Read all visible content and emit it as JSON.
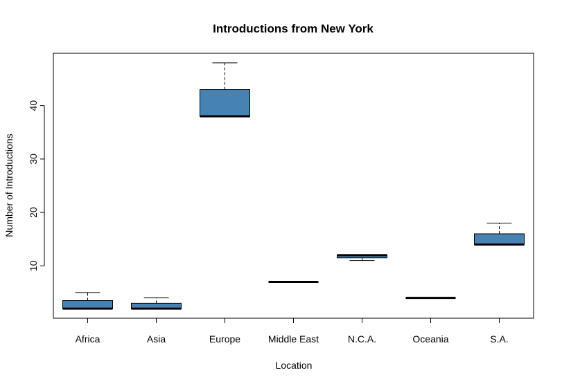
{
  "chart_data": {
    "type": "boxplot",
    "title": "Introductions from New York",
    "xlabel": "Location",
    "ylabel": "Number of Introductions",
    "ylim": [
      0.2,
      49.8
    ],
    "yticks": [
      10,
      20,
      30,
      40
    ],
    "box_color": "#4682B4",
    "categories": [
      "Africa",
      "Asia",
      "Europe",
      "Middle East",
      "N.C.A.",
      "Oceania",
      "S.A."
    ],
    "boxes": [
      {
        "whisker_low": 2,
        "q1": 2,
        "median": 2,
        "q3": 3.5,
        "whisker_high": 5
      },
      {
        "whisker_low": 2,
        "q1": 2,
        "median": 2,
        "q3": 3,
        "whisker_high": 4
      },
      {
        "whisker_low": 38,
        "q1": 38,
        "median": 38,
        "q3": 43,
        "whisker_high": 48
      },
      {
        "whisker_low": 7,
        "q1": 7,
        "median": 7,
        "q3": 7,
        "whisker_high": 7
      },
      {
        "whisker_low": 11,
        "q1": 11.5,
        "median": 12,
        "q3": 12,
        "whisker_high": 12
      },
      {
        "whisker_low": 4,
        "q1": 4,
        "median": 4,
        "q3": 4,
        "whisker_high": 4
      },
      {
        "whisker_low": 14,
        "q1": 14,
        "median": 14,
        "q3": 16,
        "whisker_high": 18
      }
    ]
  }
}
